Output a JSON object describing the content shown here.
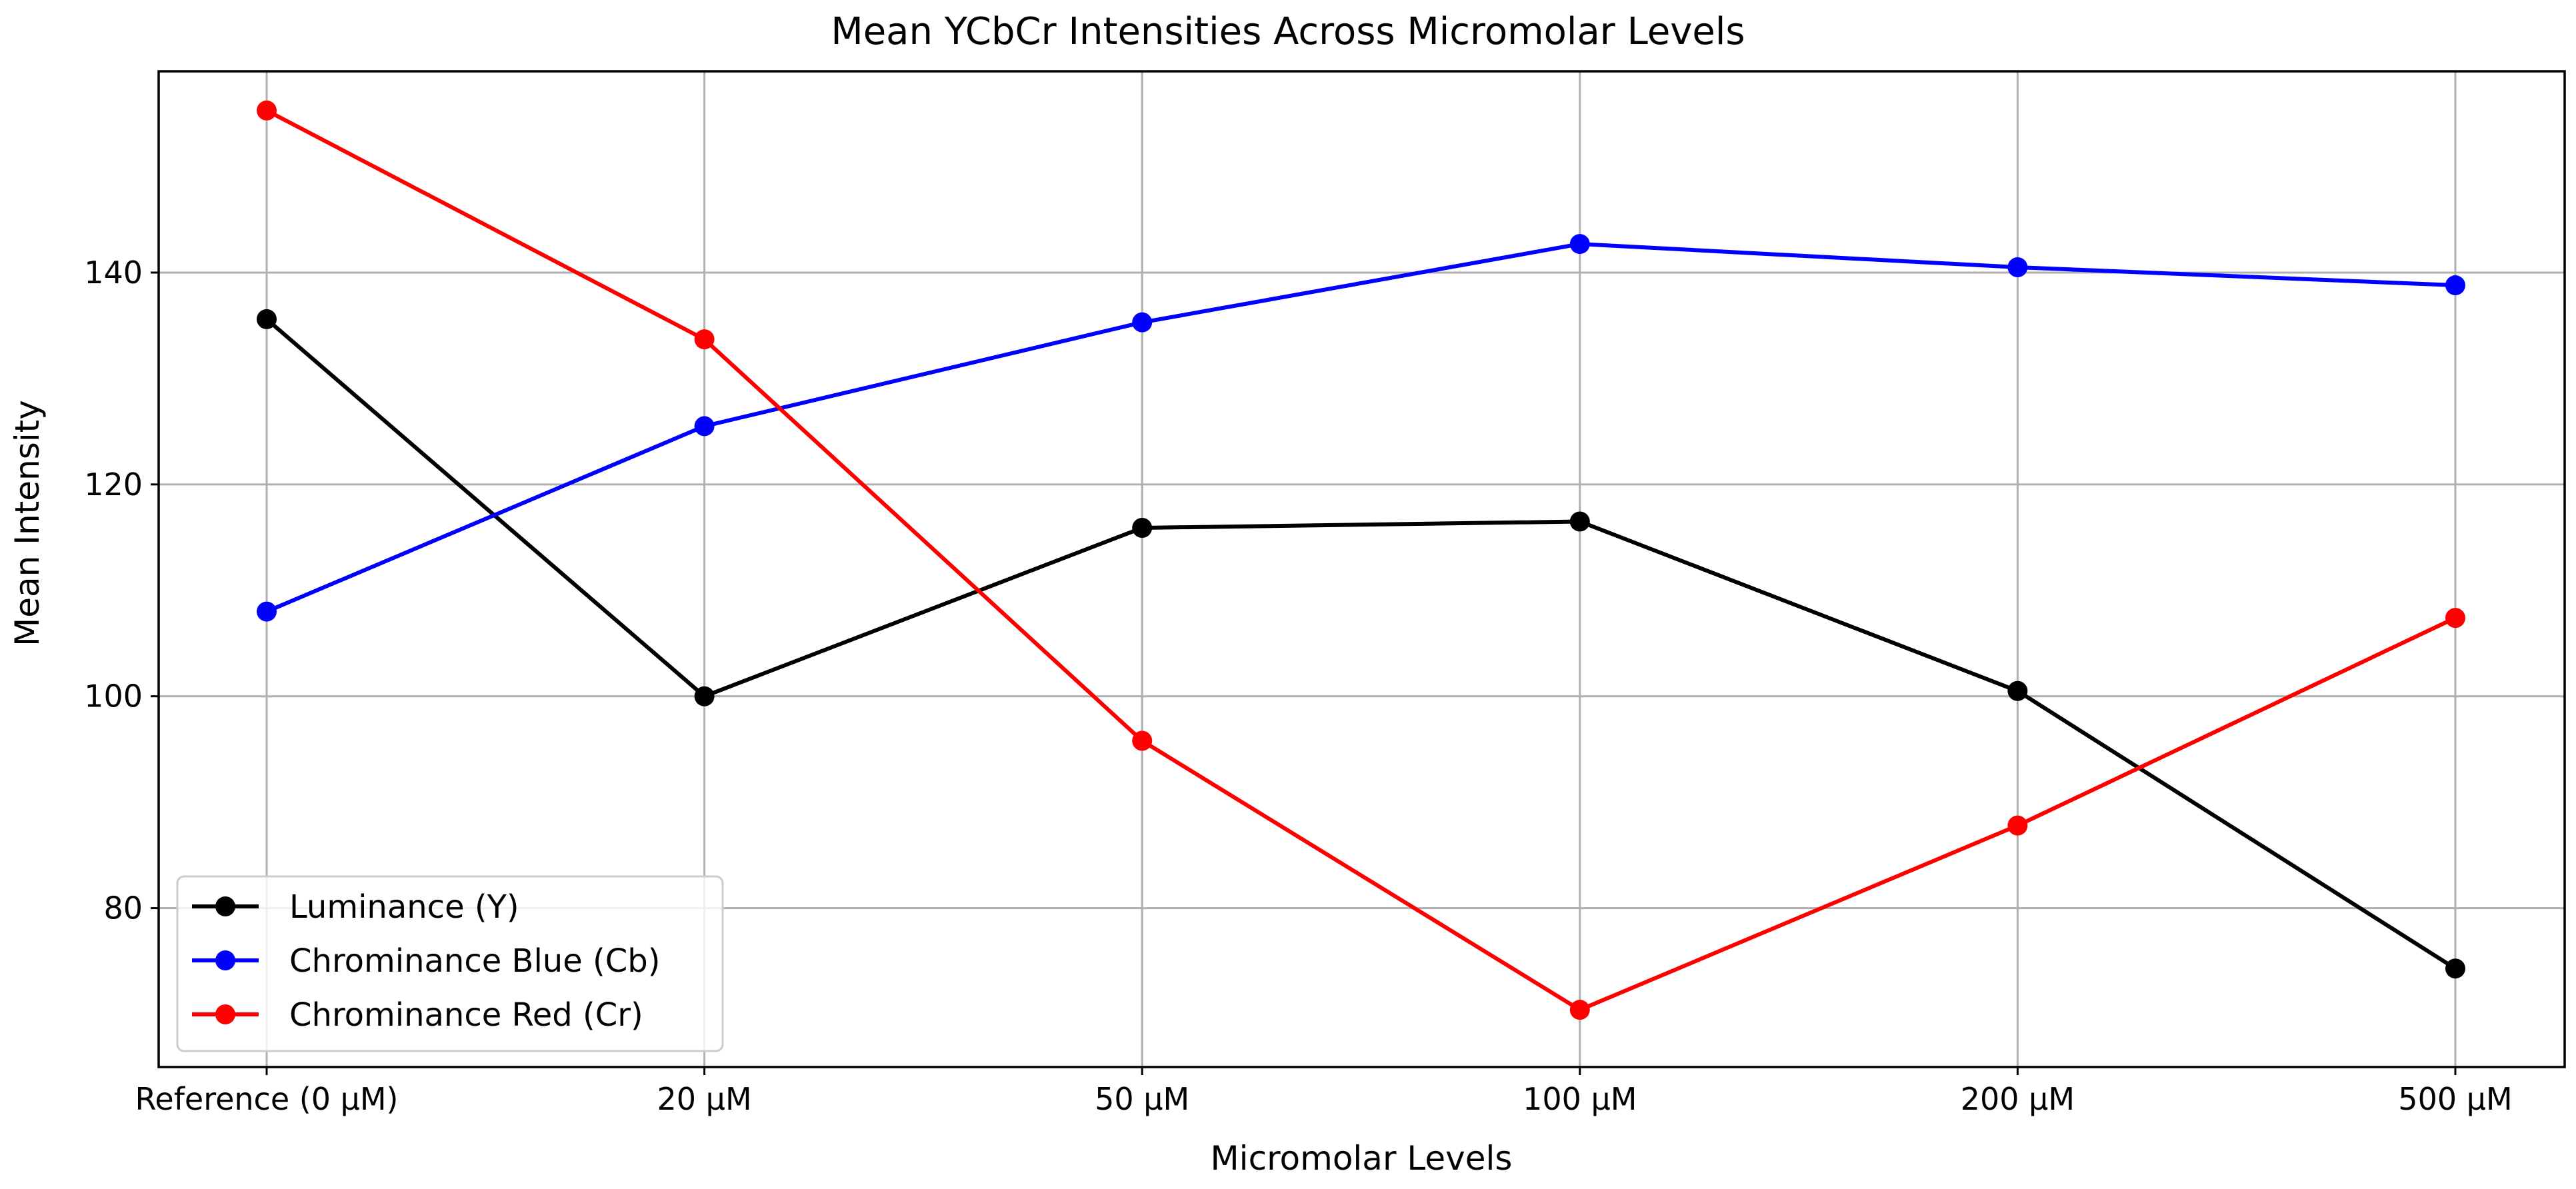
{
  "chart_data": {
    "type": "line",
    "title": "Mean YCbCr Intensities Across Micromolar Levels",
    "xlabel": "Micromolar Levels",
    "ylabel": "Mean Intensity",
    "categories": [
      "Reference (0 µM)",
      "20 µM",
      "50 µM",
      "100 µM",
      "200 µM",
      "500 µM"
    ],
    "ylim": [
      65,
      159
    ],
    "yticks": [
      80,
      100,
      120,
      140
    ],
    "grid": true,
    "legend_position": "lower-left",
    "series": [
      {
        "name": "Luminance (Y)",
        "color": "#000000",
        "marker": "circle",
        "values": [
          135.6,
          100.0,
          115.9,
          116.5,
          100.5,
          74.3
        ]
      },
      {
        "name": "Chrominance Blue (Cb)",
        "color": "#0000ff",
        "marker": "circle",
        "values": [
          108.0,
          125.5,
          135.3,
          142.7,
          140.5,
          138.8
        ]
      },
      {
        "name": "Chrominance Red (Cr)",
        "color": "#ff0000",
        "marker": "circle",
        "values": [
          155.3,
          133.7,
          95.8,
          70.4,
          87.8,
          107.4
        ]
      }
    ]
  }
}
